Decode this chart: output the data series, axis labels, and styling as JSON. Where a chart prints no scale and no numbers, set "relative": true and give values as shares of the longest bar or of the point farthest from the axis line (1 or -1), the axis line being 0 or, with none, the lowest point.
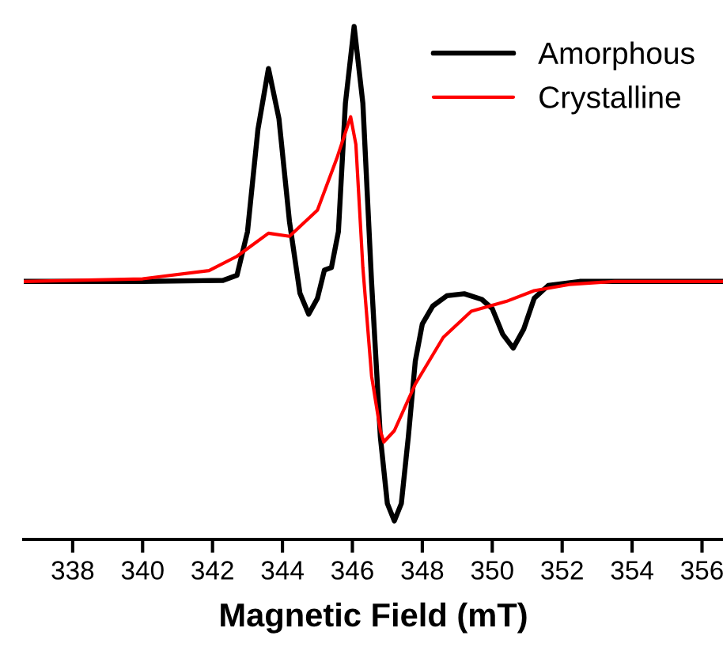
{
  "chart_data": {
    "type": "line",
    "relative": true,
    "xlabel": "Magnetic Field (mT)",
    "xlim": [
      336.6,
      356.6
    ],
    "xticks": [
      338,
      340,
      342,
      344,
      346,
      348,
      350,
      352,
      354,
      356
    ],
    "legend": "top right",
    "grid": false,
    "marker": "none",
    "line_style": "solid",
    "series": [
      {
        "name": "Amorphous",
        "color": "#000000",
        "x": [
          336.6,
          340,
          342.3,
          342.7,
          343.0,
          343.3,
          343.6,
          343.9,
          344.2,
          344.5,
          344.75,
          345.0,
          345.2,
          345.4,
          345.6,
          345.8,
          346.05,
          346.3,
          346.55,
          346.8,
          347.0,
          347.2,
          347.4,
          347.6,
          347.8,
          348.0,
          348.3,
          348.7,
          349.2,
          349.7,
          350.0,
          350.3,
          350.6,
          350.9,
          351.2,
          351.6,
          352.5,
          356.6
        ],
        "values": [
          0.503,
          0.503,
          0.505,
          0.515,
          0.6,
          0.8,
          0.918,
          0.82,
          0.62,
          0.48,
          0.439,
          0.47,
          0.525,
          0.53,
          0.6,
          0.85,
          1.0,
          0.85,
          0.5,
          0.2,
          0.07,
          0.036,
          0.07,
          0.2,
          0.348,
          0.42,
          0.455,
          0.475,
          0.479,
          0.468,
          0.45,
          0.4,
          0.373,
          0.41,
          0.47,
          0.495,
          0.503,
          0.503
        ]
      },
      {
        "name": "Crystalline",
        "color": "#ff0000",
        "x": [
          336.6,
          340,
          341.9,
          342.7,
          343.6,
          344.2,
          345.0,
          345.55,
          345.95,
          346.1,
          346.3,
          346.55,
          346.8,
          346.9,
          347.2,
          347.8,
          348.6,
          349.4,
          350.4,
          351.2,
          352.2,
          353.5,
          356.6
        ],
        "values": [
          0.503,
          0.508,
          0.524,
          0.552,
          0.597,
          0.591,
          0.642,
          0.742,
          0.824,
          0.77,
          0.53,
          0.318,
          0.212,
          0.19,
          0.212,
          0.303,
          0.394,
          0.445,
          0.464,
          0.485,
          0.497,
          0.503,
          0.503
        ]
      }
    ]
  }
}
